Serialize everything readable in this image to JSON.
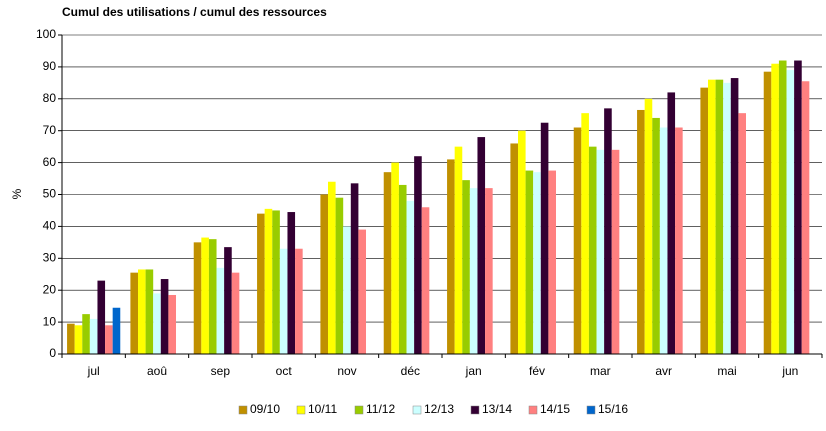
{
  "chart_data": {
    "type": "bar",
    "title": "Cumul des utilisations / cumul des ressources",
    "ylabel": "%",
    "categories": [
      "jul",
      "aoû",
      "sep",
      "oct",
      "nov",
      "déc",
      "jan",
      "fév",
      "mar",
      "avr",
      "mai",
      "jun"
    ],
    "series": [
      {
        "name": "09/10",
        "color": "#c09000",
        "values": [
          9.5,
          25.5,
          35,
          44,
          50,
          57,
          61,
          66,
          71,
          76.5,
          83.5,
          88.5
        ]
      },
      {
        "name": "10/11",
        "color": "#ffff00",
        "values": [
          9,
          26.5,
          36.5,
          45.5,
          54,
          60,
          65,
          70,
          75.5,
          80,
          86,
          91
        ]
      },
      {
        "name": "11/12",
        "color": "#99cc00",
        "values": [
          12.5,
          26.5,
          36,
          45,
          49,
          53,
          54.5,
          57.5,
          65,
          74,
          86,
          92
        ]
      },
      {
        "name": "12/13",
        "color": "#ccffff",
        "values": [
          11,
          19,
          27,
          33,
          40,
          48,
          52,
          57,
          64,
          71,
          85,
          89
        ]
      },
      {
        "name": "13/14",
        "color": "#330033",
        "values": [
          23,
          23.5,
          33.5,
          44.5,
          53.5,
          62,
          68,
          72.5,
          77,
          82,
          86.5,
          92
        ]
      },
      {
        "name": "14/15",
        "color": "#ff8080",
        "values": [
          9,
          18.5,
          25.5,
          33,
          39,
          46,
          52,
          57.5,
          64,
          71,
          75.5,
          85.5
        ]
      },
      {
        "name": "15/16",
        "color": "#0066cc",
        "values": [
          14.5,
          null,
          null,
          null,
          null,
          null,
          null,
          null,
          null,
          null,
          null,
          null
        ]
      }
    ],
    "ylim": [
      0,
      100
    ],
    "yticks": [
      0,
      10,
      20,
      30,
      40,
      50,
      60,
      70,
      80,
      90,
      100
    ],
    "grid": true,
    "legend": "bottom"
  }
}
